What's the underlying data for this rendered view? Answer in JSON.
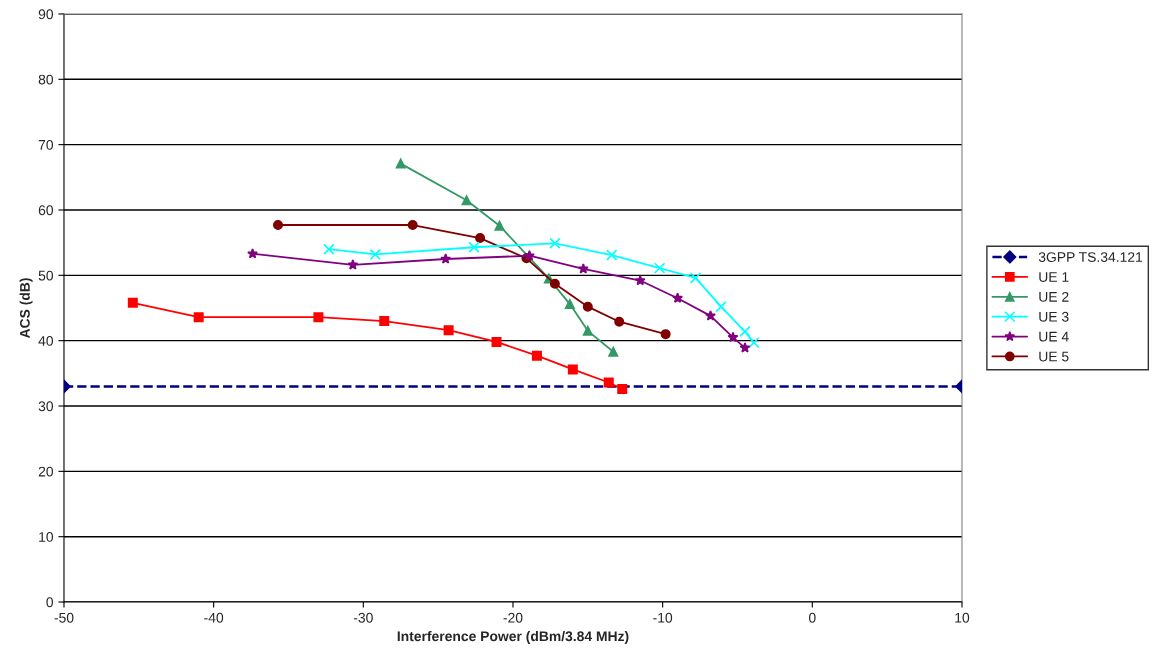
{
  "chart_data": {
    "type": "line",
    "xlabel": "Interference Power (dBm/3.84 MHz)",
    "ylabel": "ACS (dB)",
    "xlim": [
      -50,
      10
    ],
    "xticks": [
      -50,
      -40,
      -30,
      -20,
      -10,
      0,
      10
    ],
    "ylim": [
      0,
      90
    ],
    "yticks": [
      0,
      10,
      20,
      30,
      40,
      50,
      60,
      70,
      80,
      90
    ],
    "grid": "y",
    "legend": "right",
    "series": [
      {
        "name": "3GPP TS.34.121",
        "color": "#000080",
        "marker": "diamond",
        "line_style": "dashed",
        "x": [
          -50,
          10
        ],
        "values": [
          33,
          33
        ]
      },
      {
        "name": "UE 1",
        "color": "#ff0000",
        "marker": "square",
        "line_style": "solid",
        "x": [
          -45.4,
          -41.0,
          -33.0,
          -28.6,
          -24.3,
          -21.1,
          -18.4,
          -16.0,
          -13.6,
          -12.7
        ],
        "values": [
          45.8,
          43.6,
          43.6,
          43.0,
          41.6,
          39.8,
          37.7,
          35.6,
          33.6,
          32.6
        ]
      },
      {
        "name": "UE 2",
        "color": "#339966",
        "marker": "triangle",
        "line_style": "solid",
        "x": [
          -27.5,
          -23.1,
          -20.9,
          -17.6,
          -16.2,
          -15.0,
          -13.3
        ],
        "values": [
          67.1,
          61.5,
          57.6,
          49.5,
          45.6,
          41.5,
          38.3
        ]
      },
      {
        "name": "UE 3",
        "color": "#00ffff",
        "marker": "cross",
        "line_style": "solid",
        "x": [
          -32.3,
          -29.2,
          -22.6,
          -17.2,
          -13.4,
          -10.2,
          -7.8,
          -6.1,
          -4.5,
          -3.9
        ],
        "values": [
          54.0,
          53.2,
          54.3,
          54.9,
          53.1,
          51.1,
          49.6,
          45.2,
          41.4,
          39.7
        ]
      },
      {
        "name": "UE 4",
        "color": "#800080",
        "marker": "star",
        "line_style": "solid",
        "x": [
          -37.4,
          -30.7,
          -24.5,
          -18.9,
          -15.3,
          -11.5,
          -9.0,
          -6.8,
          -5.3,
          -4.5
        ],
        "values": [
          53.3,
          51.6,
          52.5,
          53.0,
          51.0,
          49.2,
          46.5,
          43.8,
          40.5,
          38.9
        ]
      },
      {
        "name": "UE 5",
        "color": "#800000",
        "marker": "circle",
        "line_style": "solid",
        "x": [
          -35.7,
          -26.7,
          -22.2,
          -19.1,
          -17.2,
          -15.0,
          -12.9,
          -9.8
        ],
        "values": [
          57.7,
          57.7,
          55.7,
          52.6,
          48.7,
          45.2,
          42.9,
          41.0
        ]
      }
    ]
  }
}
